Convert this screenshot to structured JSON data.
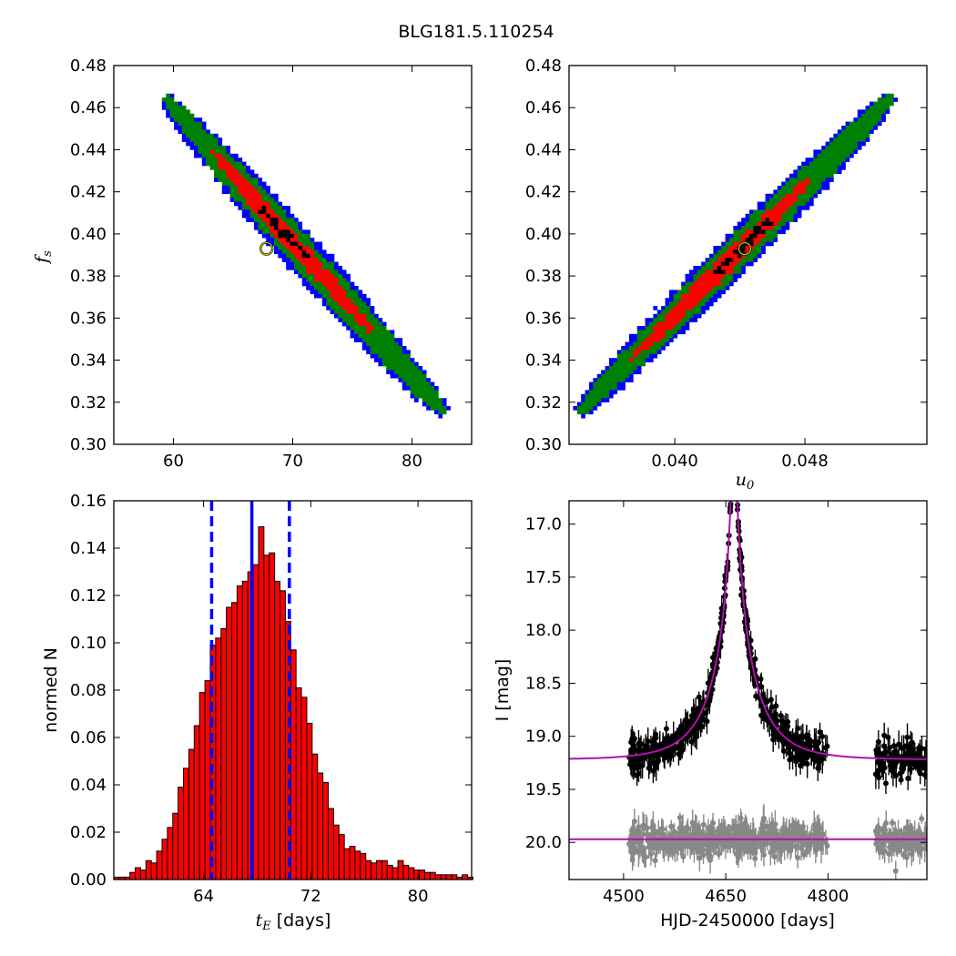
{
  "figure": {
    "title": "BLG181.5.110254"
  },
  "chart_data": [
    {
      "type": "heatmap",
      "panel": "top-left",
      "xlabel": "",
      "ylabel": "f",
      "ylabel_sub": "s",
      "xlim": [
        55,
        85
      ],
      "ylim": [
        0.3,
        0.48
      ],
      "xticks": [
        60,
        70,
        80
      ],
      "yticks": [
        0.3,
        0.32,
        0.34,
        0.36,
        0.38,
        0.4,
        0.42,
        0.44,
        0.46,
        0.48
      ],
      "contour_colors": {
        "outer": "#0000ff",
        "middle": "#008000",
        "inner": "#ff0000",
        "core": "#000000"
      },
      "ridge": {
        "x_start": 59.5,
        "y_start": 0.463,
        "x_end": 82.5,
        "y_end": 0.316
      },
      "best_fit": {
        "x": 67.8,
        "y": 0.393
      }
    },
    {
      "type": "heatmap",
      "panel": "top-right",
      "xlabel": "u",
      "xlabel_sub": "0",
      "ylabel": "",
      "xlim": [
        0.0335,
        0.0555
      ],
      "ylim": [
        0.3,
        0.48
      ],
      "xticks": [
        0.04,
        0.048
      ],
      "xtick_labels": [
        "0.040",
        "0.048"
      ],
      "yticks": [
        0.3,
        0.32,
        0.34,
        0.36,
        0.38,
        0.4,
        0.42,
        0.44,
        0.46,
        0.48
      ],
      "contour_colors": {
        "outer": "#0000ff",
        "middle": "#008000",
        "inner": "#ff0000",
        "core": "#000000"
      },
      "ridge": {
        "x_start": 0.0342,
        "y_start": 0.316,
        "x_end": 0.0532,
        "y_end": 0.464
      },
      "best_fit": {
        "x": 0.0443,
        "y": 0.393
      }
    },
    {
      "type": "bar",
      "panel": "bottom-left",
      "xlabel": "t",
      "xlabel_sub": "E",
      "xlabel_unit": "[days]",
      "ylabel": "normed N",
      "xlim": [
        57.3,
        84.0
      ],
      "ylim": [
        0.0,
        0.16
      ],
      "xticks": [
        64,
        72,
        80
      ],
      "yticks": [
        0.0,
        0.02,
        0.04,
        0.06,
        0.08,
        0.1,
        0.12,
        0.14,
        0.16
      ],
      "bin_start": 57.3,
      "bin_width": 0.4,
      "values": [
        0.001,
        0.001,
        0.001,
        0.003,
        0.005,
        0.004,
        0.008,
        0.007,
        0.012,
        0.017,
        0.022,
        0.028,
        0.039,
        0.047,
        0.055,
        0.065,
        0.079,
        0.084,
        0.099,
        0.102,
        0.106,
        0.115,
        0.117,
        0.124,
        0.126,
        0.13,
        0.133,
        0.149,
        0.137,
        0.138,
        0.126,
        0.122,
        0.109,
        0.097,
        0.081,
        0.077,
        0.066,
        0.053,
        0.045,
        0.041,
        0.03,
        0.023,
        0.019,
        0.013,
        0.014,
        0.012,
        0.011,
        0.008,
        0.007,
        0.008,
        0.008,
        0.006,
        0.005,
        0.008,
        0.006,
        0.005,
        0.004,
        0.004,
        0.003,
        0.003,
        0.002,
        0.002,
        0.002,
        0.002,
        0.001,
        0.002,
        0.001
      ],
      "bar_color": "#ff0000",
      "median": 67.6,
      "interval": [
        64.6,
        70.4
      ],
      "line_color": "#0000ff"
    },
    {
      "type": "scatter",
      "panel": "bottom-right",
      "xlabel": "HJD-2450000 [days]",
      "ylabel": "I [mag]",
      "xlim": [
        4420,
        4945
      ],
      "ylim": [
        20.35,
        16.78
      ],
      "y_inverted": true,
      "xticks": [
        4500,
        4650,
        4800
      ],
      "yticks": [
        17.0,
        17.5,
        18.0,
        18.5,
        19.0,
        19.5,
        20.0
      ],
      "yticks_labels": [
        "17.0",
        "17.5",
        "18.0",
        "18.5",
        "19.0",
        "19.5",
        "20.0"
      ],
      "model": {
        "t0": 4662,
        "u0": 0.044,
        "tE": 67.6,
        "baseline": 19.22,
        "color": "#b010b0"
      },
      "residual_baseline": 19.97,
      "data_color": "#000000",
      "residual_color": "#888888",
      "observing_seasons": [
        [
          4508,
          4800
        ],
        [
          4870,
          4945
        ]
      ]
    }
  ]
}
